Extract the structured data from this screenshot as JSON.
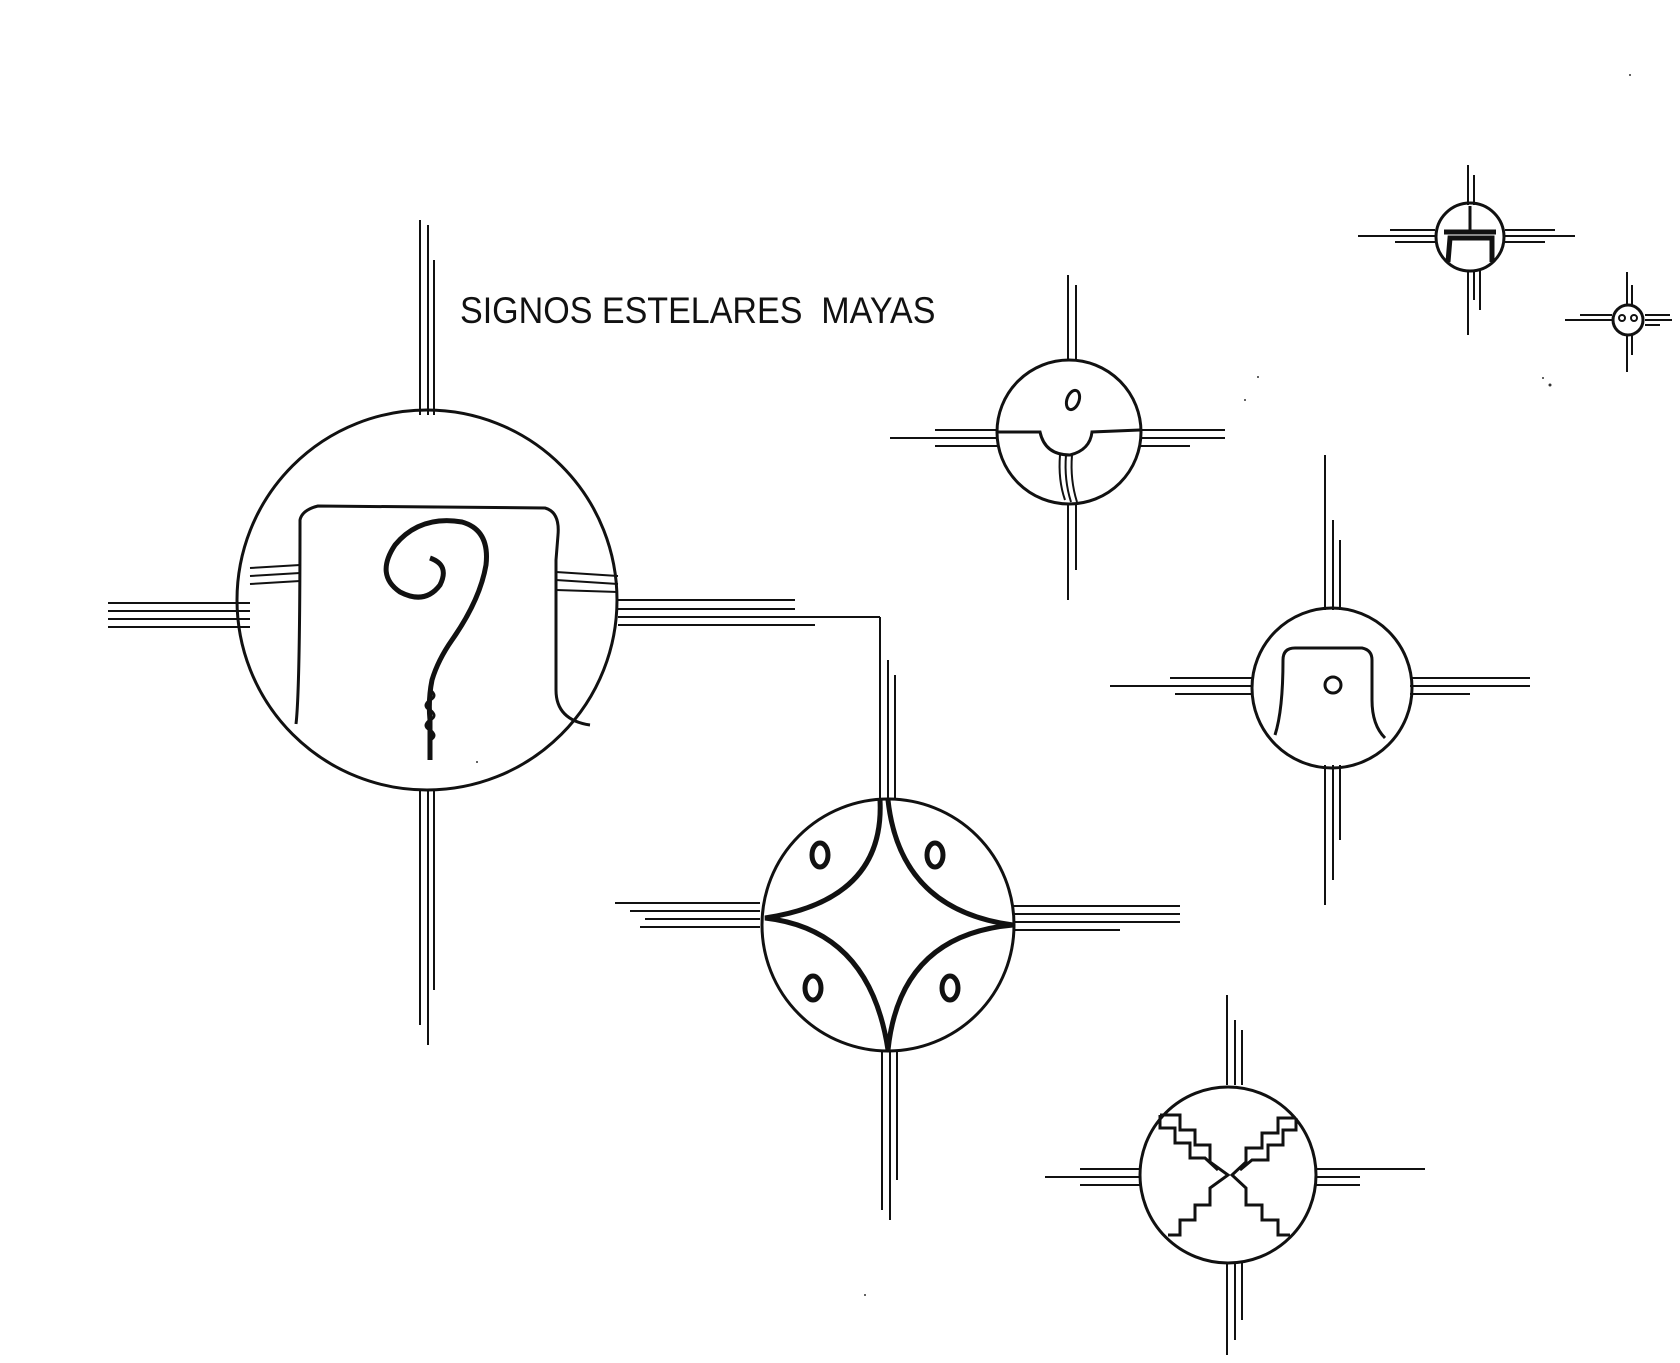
{
  "title": "SIGNOS ESTELARES  MAYAS",
  "ink_color": "#111111",
  "glyphs": [
    {
      "name": "spiral-star-glyph"
    },
    {
      "name": "four-dots-star-glyph"
    },
    {
      "name": "dot-notch-star-glyph"
    },
    {
      "name": "arch-dot-star-glyph"
    },
    {
      "name": "stepped-fret-star-glyph"
    },
    {
      "name": "small-arch-star-glyph"
    },
    {
      "name": "tiny-dots-star-glyph"
    }
  ]
}
